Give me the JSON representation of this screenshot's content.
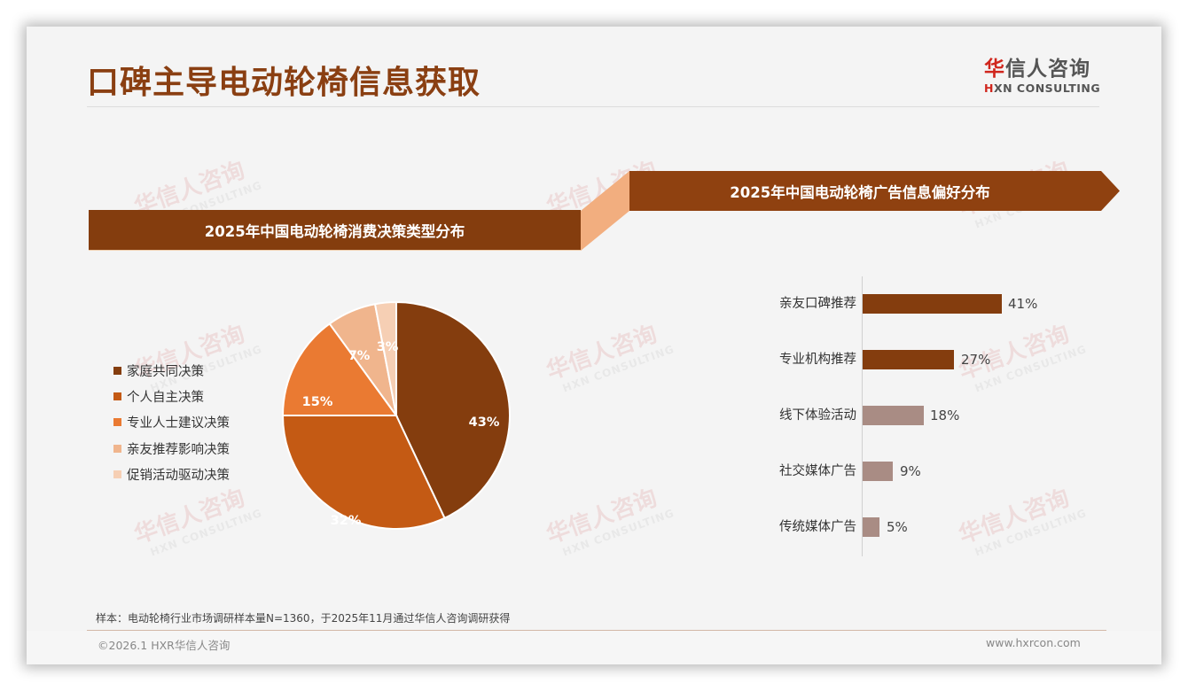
{
  "header": {
    "title": "口碑主导电动轮椅信息获取",
    "logo_cn_first": "华",
    "logo_cn_rest": "信人咨询",
    "logo_en_first": "H",
    "logo_en_rest": "XN CONSULTING"
  },
  "watermark": {
    "cn": "华信人咨询",
    "en": "HXN CONSULTING"
  },
  "colors": {
    "brown_dark": "#843d0e",
    "brown_banner": "#8f4110",
    "connector": "#f2ae7f",
    "bar_strong": "#843d0e",
    "bar_muted": "#a98c84",
    "title": "#8a3f12",
    "logo_red": "#d0261d"
  },
  "left_panel": {
    "banner_title": "2025年中国电动轮椅消费决策类型分布"
  },
  "right_panel": {
    "banner_title": "2025年中国电动轮椅广告信息偏好分布"
  },
  "chart_data": [
    {
      "type": "pie",
      "title": "2025年中国电动轮椅消费决策类型分布",
      "categories": [
        "家庭共同决策",
        "个人自主决策",
        "专业人士建议决策",
        "亲友推荐影响决策",
        "促销活动驱动决策"
      ],
      "values": [
        43,
        32,
        15,
        7,
        3
      ],
      "labels": [
        "43%",
        "32%",
        "15%",
        "7%",
        "3%"
      ],
      "colors": [
        "#843d0e",
        "#c45a14",
        "#ea7a32",
        "#f0b58d",
        "#f6cfb4"
      ],
      "legend_position": "left",
      "unit": "%"
    },
    {
      "type": "bar",
      "orientation": "horizontal",
      "title": "2025年中国电动轮椅广告信息偏好分布",
      "categories": [
        "亲友口碑推荐",
        "专业机构推荐",
        "线下体验活动",
        "社交媒体广告",
        "传统媒体广告"
      ],
      "values": [
        41,
        27,
        18,
        9,
        5
      ],
      "labels": [
        "41%",
        "27%",
        "18%",
        "9%",
        "5%"
      ],
      "colors": [
        "#843d0e",
        "#843d0e",
        "#a98c84",
        "#a98c84",
        "#a98c84"
      ],
      "xlabel": "",
      "ylabel": "",
      "grid": false,
      "unit": "%"
    }
  ],
  "legend": {
    "items": [
      {
        "label": "家庭共同决策",
        "color": "#843d0e"
      },
      {
        "label": "个人自主决策",
        "color": "#c45a14"
      },
      {
        "label": "专业人士建议决策",
        "color": "#ea7a32"
      },
      {
        "label": "亲友推荐影响决策",
        "color": "#f0b58d"
      },
      {
        "label": "促销活动驱动决策",
        "color": "#f6cfb4"
      }
    ]
  },
  "pie_labels": [
    "43%",
    "32%",
    "15%",
    "7%",
    "3%"
  ],
  "bars": {
    "items": [
      {
        "label": "亲友口碑推荐",
        "value": "41%"
      },
      {
        "label": "专业机构推荐",
        "value": "27%"
      },
      {
        "label": "线下体验活动",
        "value": "18%"
      },
      {
        "label": "社交媒体广告",
        "value": "9%"
      },
      {
        "label": "传统媒体广告",
        "value": "5%"
      }
    ]
  },
  "footer": {
    "note": "样本：电动轮椅行业市场调研样本量N=1360，于2025年11月通过华信人咨询调研获得",
    "copyright": "©2026.1 HXR华信人咨询",
    "website": "www.hxrcon.com"
  }
}
